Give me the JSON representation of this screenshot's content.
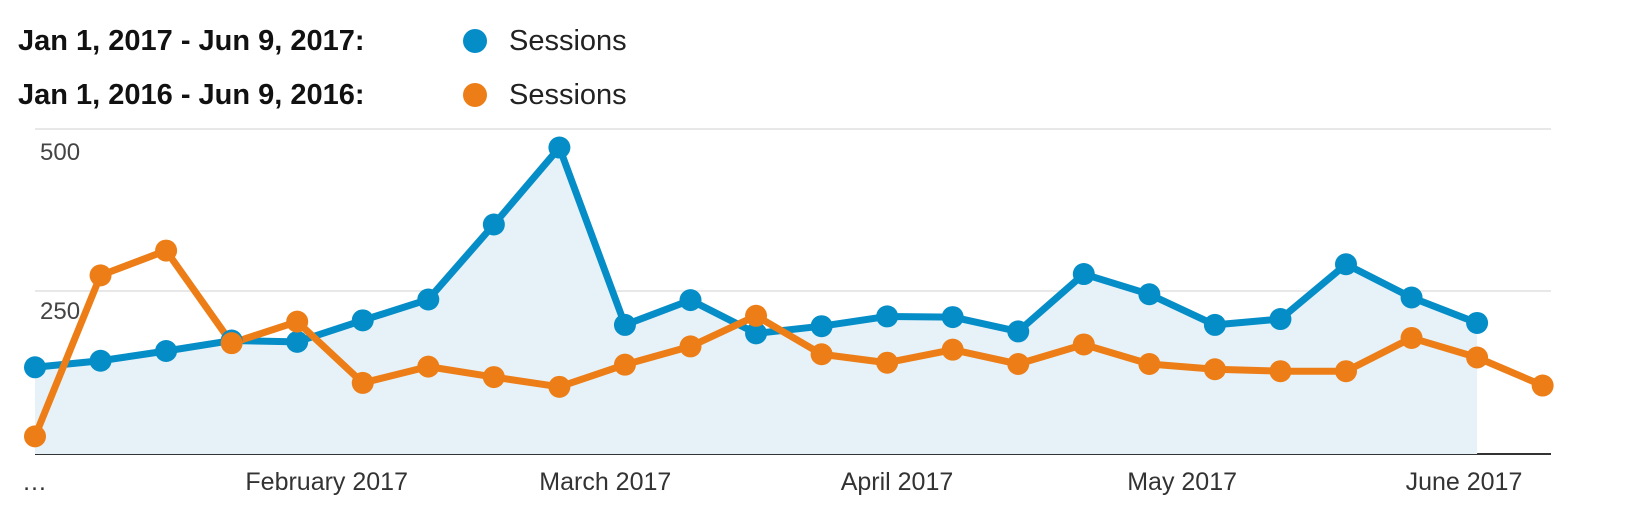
{
  "chart_data": {
    "type": "line",
    "legend": [
      {
        "range": "Jan 1, 2017 - Jun 9, 2017:",
        "series": "Sessions",
        "color": "#058dc7"
      },
      {
        "range": "Jan 1, 2016 - Jun 9, 2016:",
        "series": "Sessions",
        "color": "#ed7e17"
      }
    ],
    "ylim": [
      0,
      500
    ],
    "y_ticks": [
      {
        "value": 500,
        "label": "500"
      },
      {
        "value": 250,
        "label": "250"
      }
    ],
    "x_labels": [
      {
        "label": "…",
        "index": 0
      },
      {
        "label": "February 2017",
        "index": 4.45
      },
      {
        "label": "March 2017",
        "index": 8.7
      },
      {
        "label": "April 2017",
        "index": 13.15
      },
      {
        "label": "May 2017",
        "index": 17.5
      },
      {
        "label": "June 2017",
        "index": 21.8
      }
    ],
    "grid": true,
    "series": [
      {
        "name": "Sessions",
        "color": "#058dc7",
        "fill": "#e6f2f8",
        "area": true,
        "values": [
          133,
          143,
          158,
          174,
          172,
          205,
          237,
          352,
          470,
          198,
          236,
          185,
          196,
          211,
          210,
          188,
          276,
          245,
          198,
          207,
          291,
          240,
          201
        ]
      },
      {
        "name": "Sessions",
        "color": "#ed7e17",
        "fill": "none",
        "area": false,
        "values": [
          27,
          274,
          312,
          170,
          203,
          109,
          134,
          118,
          103,
          137,
          165,
          212,
          153,
          140,
          160,
          138,
          168,
          138,
          130,
          127,
          127,
          178,
          148,
          105
        ]
      }
    ]
  }
}
